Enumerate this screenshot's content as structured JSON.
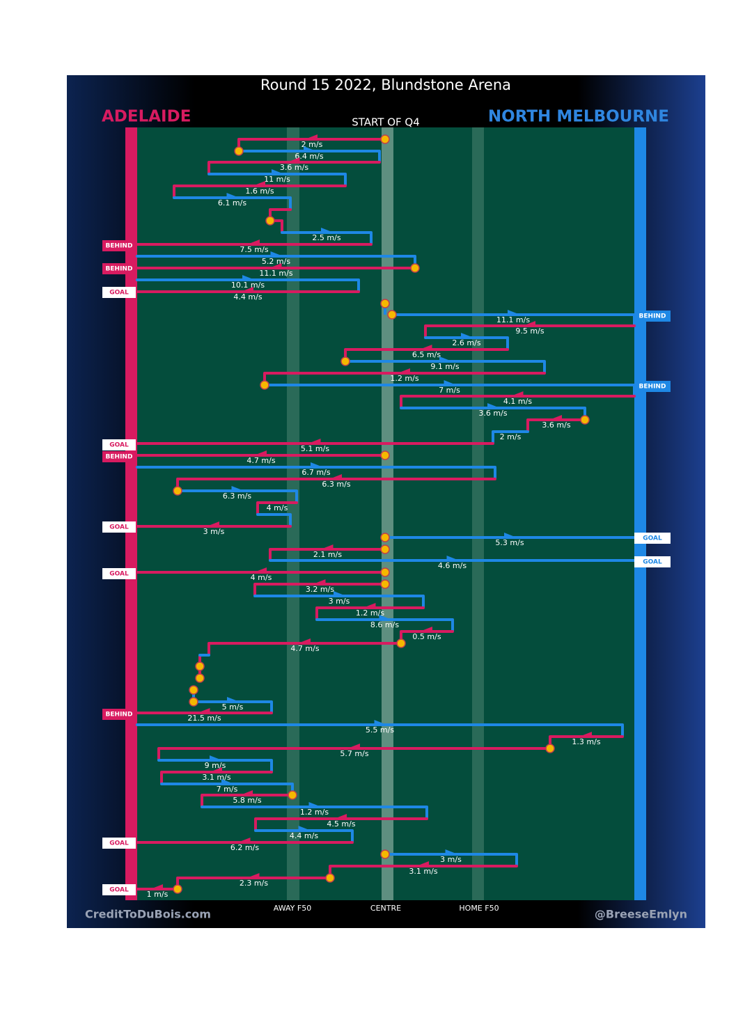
{
  "title": "Round 15 2022, Blundstone Arena",
  "home_team": "ADELAIDE",
  "away_team": "NORTH MELBOURNE",
  "subtitle": "START OF Q4",
  "field_labels": [
    "AWAY F50",
    "CENTRE",
    "HOME F50"
  ],
  "credit_left": "CreditToDuBois.com",
  "credit_right": "@BreeseEmlyn",
  "segments": [
    {
      "speed": "2 m/s",
      "color": "#d81b60"
    },
    {
      "speed": "6.4 m/s",
      "color": "#1e88e5"
    },
    {
      "speed": "3.6 m/s",
      "color": "#d81b60"
    },
    {
      "speed": "11 m/s",
      "color": "#1e88e5"
    },
    {
      "speed": "1.6 m/s",
      "color": "#d81b60"
    },
    {
      "speed": "6.1 m/s",
      "color": "#1e88e5"
    },
    {
      "speed": null,
      "color": "#d81b60"
    },
    {
      "speed": null,
      "color": "#d81b60"
    },
    {
      "speed": "2.5 m/s",
      "color": "#1e88e5"
    },
    {
      "speed": "7.5 m/s",
      "color": "#d81b60"
    },
    {
      "speed": "5.2 m/s",
      "color": "#1e88e5"
    },
    {
      "speed": "11.1 m/s",
      "color": "#d81b60"
    },
    {
      "speed": "10.1 m/s",
      "color": "#1e88e5"
    },
    {
      "speed": "4.4 m/s",
      "color": "#d81b60"
    },
    {
      "speed": "11.1 m/s",
      "color": "#1e88e5"
    },
    {
      "speed": "9.5 m/s",
      "color": "#d81b60"
    },
    {
      "speed": "2.6 m/s",
      "color": "#1e88e5"
    },
    {
      "speed": "6.5 m/s",
      "color": "#d81b60"
    },
    {
      "speed": "9.1 m/s",
      "color": "#1e88e5"
    },
    {
      "speed": "1.2 m/s",
      "color": "#d81b60"
    },
    {
      "speed": "7 m/s",
      "color": "#1e88e5"
    },
    {
      "speed": "4.1 m/s",
      "color": "#d81b60"
    },
    {
      "speed": "3.6 m/s",
      "color": "#1e88e5"
    },
    {
      "speed": "3.6 m/s",
      "color": "#d81b60"
    },
    {
      "speed": "2 m/s",
      "color": "#1e88e5"
    },
    {
      "speed": "5.1 m/s",
      "color": "#d81b60"
    },
    {
      "speed": "4.7 m/s",
      "color": "#d81b60"
    },
    {
      "speed": "6.7 m/s",
      "color": "#1e88e5"
    },
    {
      "speed": "6.3 m/s",
      "color": "#d81b60"
    },
    {
      "speed": "6.3 m/s",
      "color": "#1e88e5"
    },
    {
      "speed": "4 m/s",
      "color": "#d81b60"
    },
    {
      "speed": null,
      "color": "#1e88e5"
    },
    {
      "speed": "3 m/s",
      "color": "#d81b60"
    },
    {
      "speed": "5.3 m/s",
      "color": "#1e88e5"
    },
    {
      "speed": "2.1 m/s",
      "color": "#d81b60"
    },
    {
      "speed": "4.6 m/s",
      "color": "#1e88e5"
    },
    {
      "speed": "4 m/s",
      "color": "#d81b60"
    },
    {
      "speed": "3.2 m/s",
      "color": "#d81b60"
    },
    {
      "speed": "3 m/s",
      "color": "#1e88e5"
    },
    {
      "speed": "1.2 m/s",
      "color": "#d81b60"
    },
    {
      "speed": "8.6 m/s",
      "color": "#1e88e5"
    },
    {
      "speed": "0.5 m/s",
      "color": "#d81b60"
    },
    {
      "speed": "4.7 m/s",
      "color": "#d81b60"
    },
    {
      "speed": null,
      "color": "#1e88e5"
    },
    {
      "speed": "5 m/s",
      "color": "#1e88e5"
    },
    {
      "speed": "21.5 m/s",
      "color": "#d81b60"
    },
    {
      "speed": "5.5 m/s",
      "color": "#1e88e5"
    },
    {
      "speed": "1.3 m/s",
      "color": "#d81b60"
    },
    {
      "speed": "5.7 m/s",
      "color": "#d81b60"
    },
    {
      "speed": "9 m/s",
      "color": "#1e88e5"
    },
    {
      "speed": "3.1 m/s",
      "color": "#d81b60"
    },
    {
      "speed": "7 m/s",
      "color": "#1e88e5"
    },
    {
      "speed": "5.8 m/s",
      "color": "#d81b60"
    },
    {
      "speed": "1.2 m/s",
      "color": "#1e88e5"
    },
    {
      "speed": "4.5 m/s",
      "color": "#d81b60"
    },
    {
      "speed": "4.4 m/s",
      "color": "#1e88e5"
    },
    {
      "speed": "6.2 m/s",
      "color": "#d81b60"
    },
    {
      "speed": "3 m/s",
      "color": "#1e88e5"
    },
    {
      "speed": "3.1 m/s",
      "color": "#d81b60"
    },
    {
      "speed": "2.3 m/s",
      "color": "#d81b60"
    },
    {
      "speed": "1 m/s",
      "color": "#d81b60"
    }
  ],
  "outcomes": [
    {
      "label": "BEHIND",
      "color": "#d81b60",
      "text_color": "#ffffff"
    },
    {
      "label": "BEHIND",
      "color": "#d81b60",
      "text_color": "#ffffff"
    },
    {
      "label": "GOAL",
      "color": "#ffffff",
      "text_color": "#d81b60"
    },
    {
      "label": "BEHIND",
      "color": "#1e88e5",
      "text_color": "#ffffff"
    },
    {
      "label": "BEHIND",
      "color": "#1e88e5",
      "text_color": "#ffffff"
    },
    {
      "label": "GOAL",
      "color": "#ffffff",
      "text_color": "#d81b60"
    },
    {
      "label": "BEHIND",
      "color": "#d81b60",
      "text_color": "#ffffff"
    },
    {
      "label": "GOAL",
      "color": "#ffffff",
      "text_color": "#d81b60"
    },
    {
      "label": "GOAL",
      "color": "#ffffff",
      "text_color": "#1e88e5"
    },
    {
      "label": "GOAL",
      "color": "#ffffff",
      "text_color": "#1e88e5"
    },
    {
      "label": "GOAL",
      "color": "#ffffff",
      "text_color": "#d81b60"
    },
    {
      "label": "BEHIND",
      "color": "#d81b60",
      "text_color": "#ffffff"
    },
    {
      "label": "GOAL",
      "color": "#ffffff",
      "text_color": "#d81b60"
    },
    {
      "label": "GOAL",
      "color": "#ffffff",
      "text_color": "#d81b60"
    }
  ]
}
